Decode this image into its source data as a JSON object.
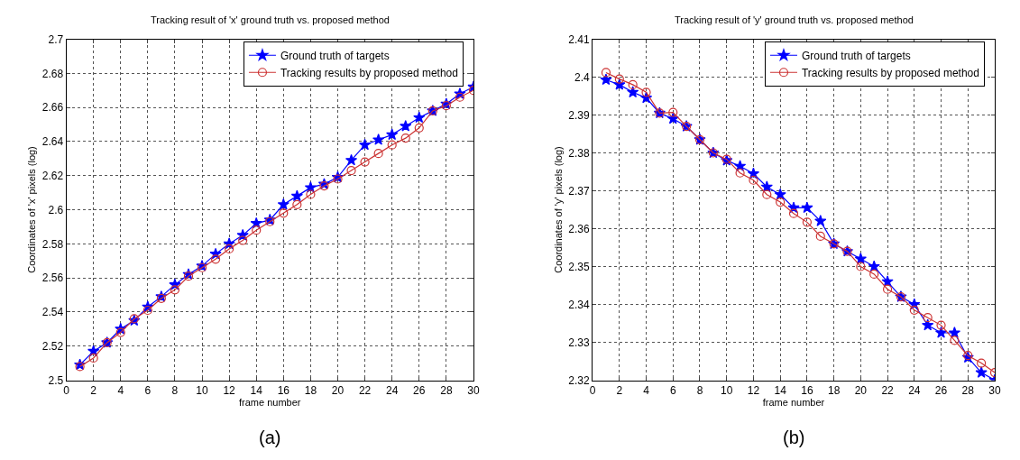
{
  "chart_data": [
    {
      "type": "line",
      "title": "Tracking result of 'x' ground truth vs. proposed method",
      "xlabel": "frame number",
      "ylabel": "Coordinates of 'x' pixels (log)",
      "annotations": [
        "(a)"
      ],
      "x": [
        1,
        2,
        3,
        4,
        5,
        6,
        7,
        8,
        9,
        10,
        11,
        12,
        13,
        14,
        15,
        16,
        17,
        18,
        19,
        20,
        21,
        22,
        23,
        24,
        25,
        26,
        27,
        28,
        29,
        30
      ],
      "series": [
        {
          "name": "Ground truth of targets",
          "color": "#0000ff",
          "marker": "star",
          "values": [
            2.509,
            2.517,
            2.522,
            2.53,
            2.535,
            2.543,
            2.549,
            2.556,
            2.562,
            2.567,
            2.574,
            2.58,
            2.585,
            2.592,
            2.594,
            2.603,
            2.608,
            2.613,
            2.615,
            2.619,
            2.629,
            2.638,
            2.641,
            2.644,
            2.649,
            2.654,
            2.658,
            2.662,
            2.668,
            2.672
          ]
        },
        {
          "name": "Tracking results by proposed method",
          "color": "#cc3333",
          "marker": "circle",
          "values": [
            2.508,
            2.513,
            2.522,
            2.528,
            2.536,
            2.541,
            2.548,
            2.553,
            2.561,
            2.566,
            2.571,
            2.577,
            2.582,
            2.588,
            2.593,
            2.598,
            2.603,
            2.609,
            2.614,
            2.618,
            2.623,
            2.628,
            2.633,
            2.638,
            2.642,
            2.648,
            2.658,
            2.661,
            2.666,
            2.67
          ]
        }
      ],
      "xlim": [
        0,
        30
      ],
      "xticks": [
        0,
        2,
        4,
        6,
        8,
        10,
        12,
        14,
        16,
        18,
        20,
        22,
        24,
        26,
        28,
        30
      ],
      "ylim": [
        2.5,
        2.7
      ],
      "yticks": [
        2.5,
        2.52,
        2.54,
        2.56,
        2.58,
        2.6,
        2.62,
        2.64,
        2.66,
        2.68,
        2.7
      ],
      "grid": true,
      "legend": "top right",
      "line_style": "solid"
    },
    {
      "type": "line",
      "title": "Tracking result of 'y' ground truth vs. proposed method",
      "xlabel": "frame number",
      "ylabel": "Coordinates of 'y' pixels (log)",
      "annotations": [
        "(b)"
      ],
      "x": [
        1,
        2,
        3,
        4,
        5,
        6,
        7,
        8,
        9,
        10,
        11,
        12,
        13,
        14,
        15,
        16,
        17,
        18,
        19,
        20,
        21,
        22,
        23,
        24,
        25,
        26,
        27,
        28,
        29,
        30
      ],
      "series": [
        {
          "name": "Ground truth of targets",
          "color": "#0000ff",
          "marker": "star",
          "values": [
            2.3993,
            2.398,
            2.396,
            2.3945,
            2.3905,
            2.389,
            2.387,
            2.3835,
            2.38,
            2.378,
            2.3765,
            2.3745,
            2.371,
            2.369,
            2.3655,
            2.3655,
            2.362,
            2.356,
            2.354,
            2.352,
            2.35,
            2.346,
            2.342,
            2.34,
            2.3345,
            2.3325,
            2.3325,
            2.326,
            2.322,
            2.32
          ]
        },
        {
          "name": "Tracking results by proposed method",
          "color": "#cc3333",
          "marker": "circle",
          "values": [
            2.4012,
            2.3995,
            2.398,
            2.396,
            2.3905,
            2.3907,
            2.387,
            2.3835,
            2.38,
            2.3783,
            2.3747,
            2.3728,
            2.369,
            2.367,
            2.364,
            2.3617,
            2.358,
            2.356,
            2.354,
            2.35,
            2.348,
            2.344,
            2.342,
            2.3385,
            2.3365,
            2.3345,
            2.3305,
            2.3265,
            2.3245,
            2.322
          ]
        }
      ],
      "xlim": [
        0,
        30
      ],
      "xticks": [
        0,
        2,
        4,
        6,
        8,
        10,
        12,
        14,
        16,
        18,
        20,
        22,
        24,
        26,
        28,
        30
      ],
      "ylim": [
        2.32,
        2.41
      ],
      "yticks": [
        2.32,
        2.33,
        2.34,
        2.35,
        2.36,
        2.37,
        2.38,
        2.39,
        2.4,
        2.41
      ],
      "grid": true,
      "legend": "top right",
      "line_style": "solid"
    }
  ]
}
